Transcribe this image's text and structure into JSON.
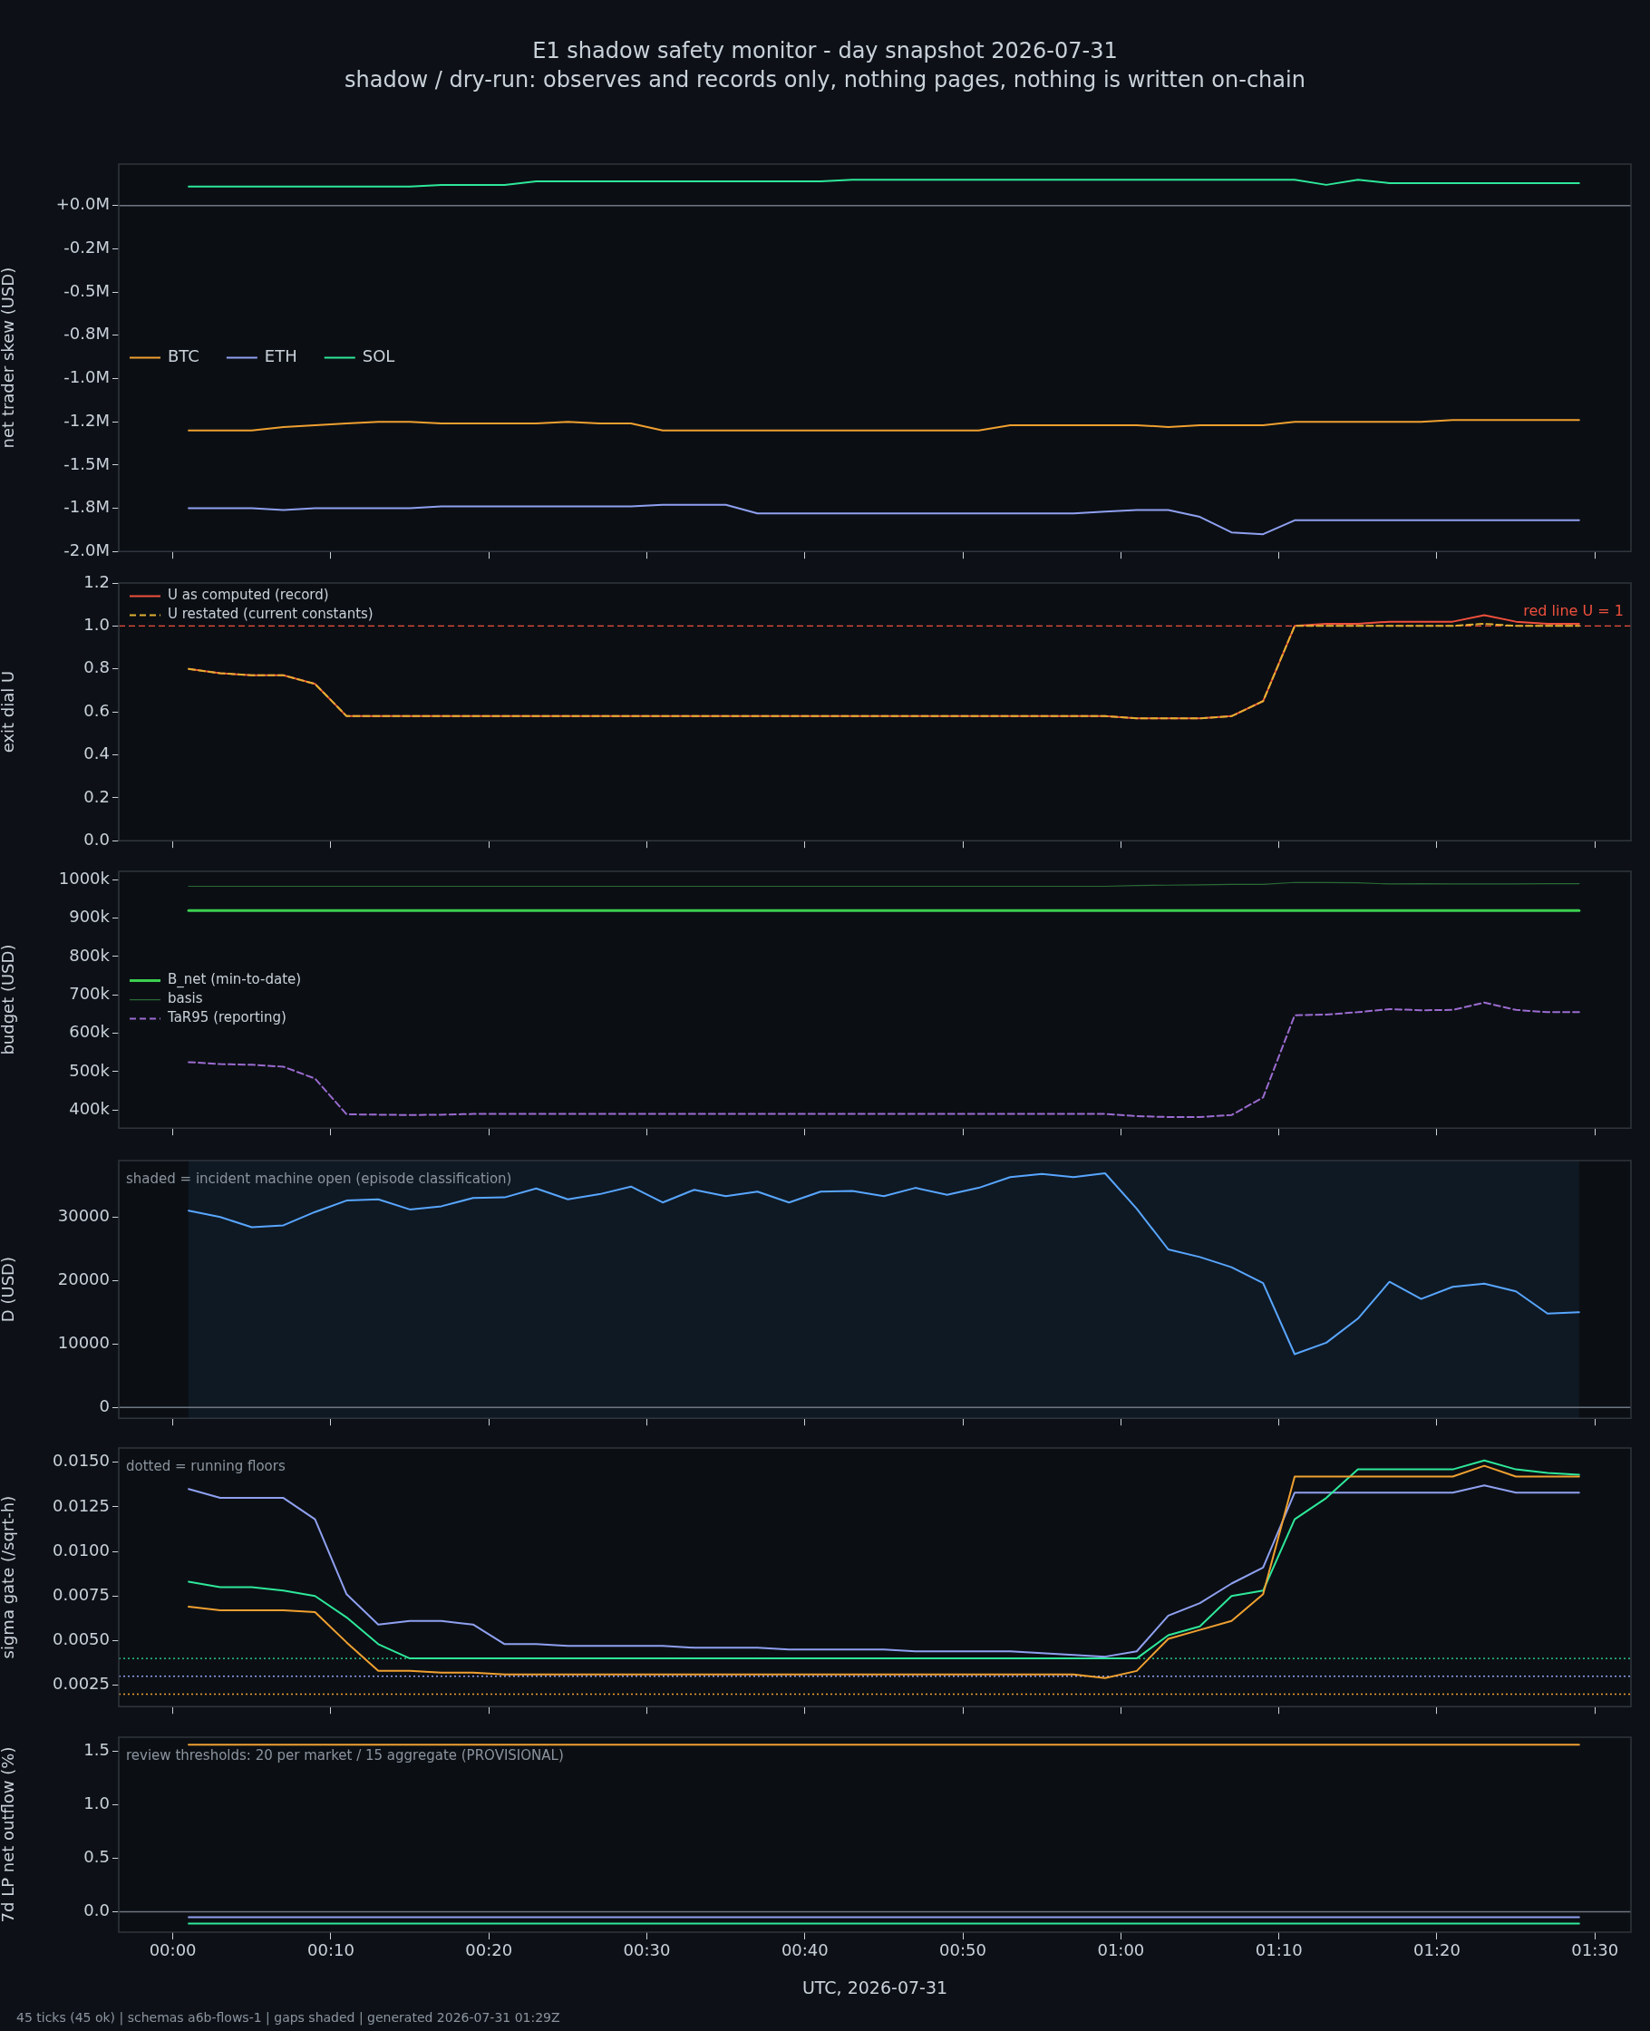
{
  "chart_data": [
    {
      "type": "line",
      "title": "E1 shadow safety monitor - day snapshot 2026-07-31",
      "subtitle": "shadow / dry-run: observes and records only, nothing pages, nothing is written on-chain",
      "ylabel": "net trader skew (USD)",
      "tick_labels": "y",
      "legend": "left",
      "x": [
        0.0167,
        0.05,
        0.0833,
        0.1167,
        0.15,
        0.1833,
        0.2167,
        0.25,
        0.2833,
        0.3167,
        0.35,
        0.3833,
        0.4167,
        0.45,
        0.4833,
        0.5167,
        0.55,
        0.5833,
        0.6167,
        0.65,
        0.6833,
        0.7167,
        0.75,
        0.7833,
        0.8167,
        0.85,
        0.8833,
        0.9167,
        0.95,
        0.9833,
        1.0167,
        1.05,
        1.0833,
        1.1167,
        1.15,
        1.1833,
        1.2167,
        1.25,
        1.2833,
        1.3167,
        1.35,
        1.3833,
        1.4167,
        1.45,
        1.4833
      ],
      "xlim": [
        -0.057,
        1.538
      ],
      "xticks": [
        {
          "value": 0,
          "label": null
        },
        {
          "value": 0.1667,
          "label": null
        },
        {
          "value": 0.3333,
          "label": null
        },
        {
          "value": 0.5,
          "label": null
        },
        {
          "value": 0.6667,
          "label": null
        },
        {
          "value": 0.8333,
          "label": null
        },
        {
          "value": 1,
          "label": null
        },
        {
          "value": 1.1667,
          "label": null
        },
        {
          "value": 1.3333,
          "label": null
        },
        {
          "value": 1.5,
          "label": null
        }
      ],
      "ylim": [
        -2.0,
        0.24
      ],
      "yticks": [
        {
          "value": 0,
          "label": "+0.0M"
        },
        {
          "value": -0.25,
          "label": "-0.2M"
        },
        {
          "value": -0.5,
          "label": "-0.5M"
        },
        {
          "value": -0.75,
          "label": "-0.8M"
        },
        {
          "value": -1,
          "label": "-1.0M"
        },
        {
          "value": -1.25,
          "label": "-1.2M"
        },
        {
          "value": -1.5,
          "label": "-1.5M"
        },
        {
          "value": -1.75,
          "label": "-1.8M"
        },
        {
          "value": -2,
          "label": "-2.0M"
        }
      ],
      "ref_lines": [
        {
          "axis": "y",
          "value": 0,
          "color": "#6e7681"
        }
      ],
      "series": [
        {
          "name": "BTC",
          "color": "#f0a030",
          "values": [
            -1.3,
            -1.3,
            -1.3,
            -1.28,
            -1.27,
            -1.26,
            -1.25,
            -1.25,
            -1.26,
            -1.26,
            -1.26,
            -1.26,
            -1.25,
            -1.26,
            -1.26,
            -1.3,
            -1.3,
            -1.3,
            -1.3,
            -1.3,
            -1.3,
            -1.3,
            -1.3,
            -1.3,
            -1.3,
            -1.3,
            -1.27,
            -1.27,
            -1.27,
            -1.27,
            -1.27,
            -1.28,
            -1.27,
            -1.27,
            -1.27,
            -1.25,
            -1.25,
            -1.25,
            -1.25,
            -1.25,
            -1.24,
            -1.24,
            -1.24,
            -1.24,
            -1.24
          ]
        },
        {
          "name": "ETH",
          "color": "#8fa0f0",
          "values": [
            -1.75,
            -1.75,
            -1.75,
            -1.76,
            -1.75,
            -1.75,
            -1.75,
            -1.75,
            -1.74,
            -1.74,
            -1.74,
            -1.74,
            -1.74,
            -1.74,
            -1.74,
            -1.73,
            -1.73,
            -1.73,
            -1.78,
            -1.78,
            -1.78,
            -1.78,
            -1.78,
            -1.78,
            -1.78,
            -1.78,
            -1.78,
            -1.78,
            -1.78,
            -1.77,
            -1.76,
            -1.76,
            -1.8,
            -1.89,
            -1.9,
            -1.82,
            -1.82,
            -1.82,
            -1.82,
            -1.82,
            -1.82,
            -1.82,
            -1.82,
            -1.82,
            -1.82
          ]
        },
        {
          "name": "SOL",
          "color": "#2ee89a",
          "values": [
            0.11,
            0.11,
            0.11,
            0.11,
            0.11,
            0.11,
            0.11,
            0.11,
            0.12,
            0.12,
            0.12,
            0.14,
            0.14,
            0.14,
            0.14,
            0.14,
            0.14,
            0.14,
            0.14,
            0.14,
            0.14,
            0.15,
            0.15,
            0.15,
            0.15,
            0.15,
            0.15,
            0.15,
            0.15,
            0.15,
            0.15,
            0.15,
            0.15,
            0.15,
            0.15,
            0.15,
            0.12,
            0.15,
            0.13,
            0.13,
            0.13,
            0.13,
            0.13,
            0.13,
            0.13
          ]
        }
      ]
    },
    {
      "type": "line",
      "ylabel": "exit dial U",
      "tick_labels": "y",
      "legend": "top left",
      "x": [
        0.0167,
        0.05,
        0.0833,
        0.1167,
        0.15,
        0.1833,
        0.2167,
        0.25,
        0.2833,
        0.3167,
        0.35,
        0.3833,
        0.4167,
        0.45,
        0.4833,
        0.5167,
        0.55,
        0.5833,
        0.6167,
        0.65,
        0.6833,
        0.7167,
        0.75,
        0.7833,
        0.8167,
        0.85,
        0.8833,
        0.9167,
        0.95,
        0.9833,
        1.0167,
        1.05,
        1.0833,
        1.1167,
        1.15,
        1.1833,
        1.2167,
        1.25,
        1.2833,
        1.3167,
        1.35,
        1.3833,
        1.4167,
        1.45,
        1.4833
      ],
      "xlim": [
        -0.057,
        1.538
      ],
      "xticks": [
        {
          "value": 0,
          "label": null
        },
        {
          "value": 0.1667,
          "label": null
        },
        {
          "value": 0.3333,
          "label": null
        },
        {
          "value": 0.5,
          "label": null
        },
        {
          "value": 0.6667,
          "label": null
        },
        {
          "value": 0.8333,
          "label": null
        },
        {
          "value": 1,
          "label": null
        },
        {
          "value": 1.1667,
          "label": null
        },
        {
          "value": 1.3333,
          "label": null
        },
        {
          "value": 1.5,
          "label": null
        }
      ],
      "ylim": [
        0,
        1.2
      ],
      "yticks": [
        {
          "value": 0,
          "label": "0.0"
        },
        0.2,
        0.4,
        0.6,
        0.8,
        {
          "value": 1,
          "label": "1.0"
        },
        1.2
      ],
      "ref_lines": [
        {
          "axis": "y",
          "value": 1,
          "label": "red line U = 1",
          "color": "#f0503c",
          "line_style": "dashed"
        }
      ],
      "series": [
        {
          "name": "U as computed (record)",
          "color": "#f0503c",
          "values": [
            0.8,
            0.78,
            0.77,
            0.77,
            0.73,
            0.58,
            0.58,
            0.58,
            0.58,
            0.58,
            0.58,
            0.58,
            0.58,
            0.58,
            0.58,
            0.58,
            0.58,
            0.58,
            0.58,
            0.58,
            0.58,
            0.58,
            0.58,
            0.58,
            0.58,
            0.58,
            0.58,
            0.58,
            0.58,
            0.58,
            0.57,
            0.57,
            0.57,
            0.58,
            0.65,
            1.0,
            1.01,
            1.01,
            1.02,
            1.02,
            1.02,
            1.05,
            1.02,
            1.01,
            1.01
          ]
        },
        {
          "name": "U restated (current constants)",
          "color": "#e0b030",
          "line_style": "dashed",
          "values": [
            0.8,
            0.78,
            0.77,
            0.77,
            0.73,
            0.58,
            0.58,
            0.58,
            0.58,
            0.58,
            0.58,
            0.58,
            0.58,
            0.58,
            0.58,
            0.58,
            0.58,
            0.58,
            0.58,
            0.58,
            0.58,
            0.58,
            0.58,
            0.58,
            0.58,
            0.58,
            0.58,
            0.58,
            0.58,
            0.58,
            0.57,
            0.57,
            0.57,
            0.58,
            0.65,
            1.0,
            1.0,
            1.0,
            1.0,
            1.0,
            1.0,
            1.01,
            1.0,
            1.0,
            1.0
          ]
        }
      ]
    },
    {
      "type": "line",
      "ylabel": "budget (USD)",
      "tick_labels": "y",
      "legend": "left",
      "x": [
        0.0167,
        0.05,
        0.0833,
        0.1167,
        0.15,
        0.1833,
        0.2167,
        0.25,
        0.2833,
        0.3167,
        0.35,
        0.3833,
        0.4167,
        0.45,
        0.4833,
        0.5167,
        0.55,
        0.5833,
        0.6167,
        0.65,
        0.6833,
        0.7167,
        0.75,
        0.7833,
        0.8167,
        0.85,
        0.8833,
        0.9167,
        0.95,
        0.9833,
        1.0167,
        1.05,
        1.0833,
        1.1167,
        1.15,
        1.1833,
        1.2167,
        1.25,
        1.2833,
        1.3167,
        1.35,
        1.3833,
        1.4167,
        1.45,
        1.4833
      ],
      "xlim": [
        -0.057,
        1.538
      ],
      "xticks": [
        {
          "value": 0,
          "label": null
        },
        {
          "value": 0.1667,
          "label": null
        },
        {
          "value": 0.3333,
          "label": null
        },
        {
          "value": 0.5,
          "label": null
        },
        {
          "value": 0.6667,
          "label": null
        },
        {
          "value": 0.8333,
          "label": null
        },
        {
          "value": 1,
          "label": null
        },
        {
          "value": 1.1667,
          "label": null
        },
        {
          "value": 1.3333,
          "label": null
        },
        {
          "value": 1.5,
          "label": null
        }
      ],
      "ylim": [
        353000,
        1022000
      ],
      "yticks": [
        {
          "value": 400000,
          "label": "400k"
        },
        {
          "value": 500000,
          "label": "500k"
        },
        {
          "value": 600000,
          "label": "600k"
        },
        {
          "value": 700000,
          "label": "700k"
        },
        {
          "value": 800000,
          "label": "800k"
        },
        {
          "value": 900000,
          "label": "900k"
        },
        {
          "value": 1000000,
          "label": "1000k"
        }
      ],
      "series": [
        {
          "name": "B_net (min-to-date)",
          "color": "#3ccf50",
          "values": [
            920000,
            920000,
            920000,
            920000,
            920000,
            920000,
            920000,
            920000,
            920000,
            920000,
            920000,
            920000,
            920000,
            920000,
            920000,
            920000,
            920000,
            920000,
            920000,
            920000,
            920000,
            920000,
            920000,
            920000,
            920000,
            920000,
            920000,
            920000,
            920000,
            920000,
            920000,
            920000,
            920000,
            920000,
            920000,
            920000,
            920000,
            920000,
            920000,
            920000,
            920000,
            920000,
            920000,
            920000,
            920000
          ]
        },
        {
          "name": "basis",
          "color": "#2a6a35",
          "values": [
            983000,
            983000,
            983000,
            983000,
            983000,
            983000,
            983000,
            983000,
            983000,
            983000,
            983000,
            983000,
            983000,
            983000,
            983000,
            983000,
            983000,
            983000,
            983000,
            983000,
            983000,
            983000,
            983000,
            983000,
            983000,
            983000,
            983000,
            983000,
            983000,
            983000,
            985000,
            986000,
            987000,
            988000,
            988000,
            993000,
            993000,
            992000,
            989000,
            990000,
            989000,
            989000,
            989000,
            990000,
            990000
          ]
        },
        {
          "name": "TaR95 (reporting)",
          "color": "#9b6bd0",
          "line_style": "dashed",
          "values": [
            525000,
            520000,
            518000,
            513000,
            482000,
            389000,
            388000,
            387000,
            388000,
            390000,
            390000,
            390000,
            390000,
            390000,
            390000,
            390000,
            390000,
            390000,
            390000,
            390000,
            390000,
            390000,
            390000,
            390000,
            390000,
            390000,
            390000,
            390000,
            390000,
            390000,
            384000,
            382000,
            382000,
            387000,
            433000,
            647000,
            649000,
            655000,
            663000,
            660000,
            661000,
            680000,
            661000,
            655000,
            655000
          ]
        }
      ]
    },
    {
      "type": "line",
      "ylabel": "D (USD)",
      "tick_labels": "y",
      "x": [
        0.0167,
        0.05,
        0.0833,
        0.1167,
        0.15,
        0.1833,
        0.2167,
        0.25,
        0.2833,
        0.3167,
        0.35,
        0.3833,
        0.4167,
        0.45,
        0.4833,
        0.5167,
        0.55,
        0.5833,
        0.6167,
        0.65,
        0.6833,
        0.7167,
        0.75,
        0.7833,
        0.8167,
        0.85,
        0.8833,
        0.9167,
        0.95,
        0.9833,
        1.0167,
        1.05,
        1.0833,
        1.1167,
        1.15,
        1.1833,
        1.2167,
        1.25,
        1.2833,
        1.3167,
        1.35,
        1.3833,
        1.4167,
        1.45,
        1.4833
      ],
      "xlim": [
        -0.057,
        1.538
      ],
      "xticks": [
        {
          "value": 0,
          "label": null
        },
        {
          "value": 0.1667,
          "label": null
        },
        {
          "value": 0.3333,
          "label": null
        },
        {
          "value": 0.5,
          "label": null
        },
        {
          "value": 0.6667,
          "label": null
        },
        {
          "value": 0.8333,
          "label": null
        },
        {
          "value": 1,
          "label": null
        },
        {
          "value": 1.1667,
          "label": null
        },
        {
          "value": 1.3333,
          "label": null
        },
        {
          "value": 1.5,
          "label": null
        }
      ],
      "ylim": [
        -1700,
        38900
      ],
      "yticks": [
        0,
        10000,
        20000,
        30000
      ],
      "ref_lines": [
        {
          "axis": "y",
          "value": 0,
          "color": "#6e7681"
        }
      ],
      "bands": [
        {
          "axis": "x",
          "from": 0.0167,
          "to": 1.4833,
          "label": "shaded = incident machine open (episode classification)",
          "color": "#0f1924"
        }
      ],
      "series": [
        {
          "color": "#58a6ff",
          "values": [
            31000,
            30000,
            28400,
            28700,
            30800,
            32600,
            32800,
            31200,
            31700,
            33000,
            33100,
            34500,
            32800,
            33600,
            34800,
            32300,
            34300,
            33300,
            34000,
            32300,
            34000,
            34100,
            33300,
            34600,
            33500,
            34600,
            36300,
            36800,
            36300,
            36900,
            31300,
            24900,
            23700,
            22100,
            19600,
            8400,
            10200,
            14000,
            19800,
            17100,
            19000,
            19500,
            18300,
            14800,
            15000
          ]
        }
      ]
    },
    {
      "type": "line",
      "ylabel": "sigma gate (/sqrt-h)",
      "tick_labels": "y",
      "annotations": [
        "dotted = running floors"
      ],
      "x": [
        0.0167,
        0.05,
        0.0833,
        0.1167,
        0.15,
        0.1833,
        0.2167,
        0.25,
        0.2833,
        0.3167,
        0.35,
        0.3833,
        0.4167,
        0.45,
        0.4833,
        0.5167,
        0.55,
        0.5833,
        0.6167,
        0.65,
        0.6833,
        0.7167,
        0.75,
        0.7833,
        0.8167,
        0.85,
        0.8833,
        0.9167,
        0.95,
        0.9833,
        1.0167,
        1.05,
        1.0833,
        1.1167,
        1.15,
        1.1833,
        1.2167,
        1.25,
        1.2833,
        1.3167,
        1.35,
        1.3833,
        1.4167,
        1.45,
        1.4833
      ],
      "xlim": [
        -0.057,
        1.538
      ],
      "xticks": [
        {
          "value": 0,
          "label": null
        },
        {
          "value": 0.1667,
          "label": null
        },
        {
          "value": 0.3333,
          "label": null
        },
        {
          "value": 0.5,
          "label": null
        },
        {
          "value": 0.6667,
          "label": null
        },
        {
          "value": 0.8333,
          "label": null
        },
        {
          "value": 1,
          "label": null
        },
        {
          "value": 1.1667,
          "label": null
        },
        {
          "value": 1.3333,
          "label": null
        },
        {
          "value": 1.5,
          "label": null
        }
      ],
      "ylim": [
        0.0013,
        0.0158
      ],
      "yticks": [
        0.0025,
        {
          "value": 0.005,
          "label": "0.0050"
        },
        {
          "value": 0.0075,
          "label": "0.0075"
        },
        {
          "value": 0.01,
          "label": "0.0100"
        },
        {
          "value": 0.0125,
          "label": "0.0125"
        },
        {
          "value": 0.015,
          "label": "0.0150"
        }
      ],
      "ref_lines": [
        {
          "axis": "y",
          "value": 0.004,
          "color": "#2ee89a",
          "line_style": "dotted"
        },
        {
          "axis": "y",
          "value": 0.003,
          "color": "#8fa0f0",
          "line_style": "dotted"
        },
        {
          "axis": "y",
          "value": 0.002,
          "color": "#f0a030",
          "line_style": "dotted"
        }
      ],
      "series": [
        {
          "color": "#8fa0f0",
          "values": [
            0.0135,
            0.013,
            0.013,
            0.013,
            0.0118,
            0.0076,
            0.0059,
            0.0061,
            0.0061,
            0.0059,
            0.0048,
            0.0048,
            0.0047,
            0.0047,
            0.0047,
            0.0047,
            0.0046,
            0.0046,
            0.0046,
            0.0045,
            0.0045,
            0.0045,
            0.0045,
            0.0044,
            0.0044,
            0.0044,
            0.0044,
            0.0043,
            0.0042,
            0.0041,
            0.0044,
            0.0064,
            0.0071,
            0.0082,
            0.0091,
            0.0133,
            0.0133,
            0.0133,
            0.0133,
            0.0133,
            0.0133,
            0.0137,
            0.0133,
            0.0133,
            0.0133
          ]
        },
        {
          "color": "#2ee89a",
          "values": [
            0.0083,
            0.008,
            0.008,
            0.0078,
            0.0075,
            0.0063,
            0.0048,
            0.004,
            0.004,
            0.004,
            0.004,
            0.004,
            0.004,
            0.004,
            0.004,
            0.004,
            0.004,
            0.004,
            0.004,
            0.004,
            0.004,
            0.004,
            0.004,
            0.004,
            0.004,
            0.004,
            0.004,
            0.004,
            0.004,
            0.004,
            0.004,
            0.0053,
            0.0058,
            0.0075,
            0.0078,
            0.0118,
            0.013,
            0.0146,
            0.0146,
            0.0146,
            0.0146,
            0.0151,
            0.0146,
            0.0144,
            0.0143
          ]
        },
        {
          "color": "#f0a030",
          "values": [
            0.0069,
            0.0067,
            0.0067,
            0.0067,
            0.0066,
            0.0049,
            0.0033,
            0.0033,
            0.0032,
            0.0032,
            0.0031,
            0.0031,
            0.0031,
            0.0031,
            0.0031,
            0.0031,
            0.0031,
            0.0031,
            0.0031,
            0.0031,
            0.0031,
            0.0031,
            0.0031,
            0.0031,
            0.0031,
            0.0031,
            0.0031,
            0.0031,
            0.0031,
            0.0029,
            0.0033,
            0.0051,
            0.0056,
            0.0061,
            0.0076,
            0.0142,
            0.0142,
            0.0142,
            0.0142,
            0.0142,
            0.0142,
            0.0148,
            0.0142,
            0.0142,
            0.0142
          ]
        }
      ]
    },
    {
      "type": "line",
      "ylabel": "7d LP net outflow (%)",
      "xlabel": "UTC, 2026-07-31",
      "annotations": [
        "review thresholds: 20 per market / 15 aggregate (PROVISIONAL)",
        "45 ticks (45 ok) | schemas a6b-flows-1 | gaps shaded | generated 2026-07-31 01:29Z"
      ],
      "x": [
        0.0167,
        0.05,
        0.0833,
        0.1167,
        0.15,
        0.1833,
        0.2167,
        0.25,
        0.2833,
        0.3167,
        0.35,
        0.3833,
        0.4167,
        0.45,
        0.4833,
        0.5167,
        0.55,
        0.5833,
        0.6167,
        0.65,
        0.6833,
        0.7167,
        0.75,
        0.7833,
        0.8167,
        0.85,
        0.8833,
        0.9167,
        0.95,
        0.9833,
        1.0167,
        1.05,
        1.0833,
        1.1167,
        1.15,
        1.1833,
        1.2167,
        1.25,
        1.2833,
        1.3167,
        1.35,
        1.3833,
        1.4167,
        1.45,
        1.4833
      ],
      "xlim": [
        -0.057,
        1.538
      ],
      "xticks": [
        {
          "value": 0,
          "label": "00:00"
        },
        {
          "value": 0.1667,
          "label": "00:10"
        },
        {
          "value": 0.3333,
          "label": "00:20"
        },
        {
          "value": 0.5,
          "label": "00:30"
        },
        {
          "value": 0.6667,
          "label": "00:40"
        },
        {
          "value": 0.8333,
          "label": "00:50"
        },
        {
          "value": 1,
          "label": "01:00"
        },
        {
          "value": 1.1667,
          "label": "01:10"
        },
        {
          "value": 1.3333,
          "label": "01:20"
        },
        {
          "value": 1.5,
          "label": "01:30"
        }
      ],
      "ylim": [
        -0.19,
        1.63
      ],
      "yticks": [
        {
          "value": 0,
          "label": "0.0"
        },
        0.5,
        {
          "value": 1,
          "label": "1.0"
        },
        1.5
      ],
      "ref_lines": [
        {
          "axis": "y",
          "value": 0,
          "color": "#6e7681"
        }
      ],
      "series": [
        {
          "color": "#f0a030",
          "values": [
            1.56,
            1.56,
            1.56,
            1.56,
            1.56,
            1.56,
            1.56,
            1.56,
            1.56,
            1.56,
            1.56,
            1.56,
            1.56,
            1.56,
            1.56,
            1.56,
            1.56,
            1.56,
            1.56,
            1.56,
            1.56,
            1.56,
            1.56,
            1.56,
            1.56,
            1.56,
            1.56,
            1.56,
            1.56,
            1.56,
            1.56,
            1.56,
            1.56,
            1.56,
            1.56,
            1.56,
            1.56,
            1.56,
            1.56,
            1.56,
            1.56,
            1.56,
            1.56,
            1.56,
            1.56
          ]
        },
        {
          "color": "#8fa0f0",
          "values": [
            -0.05,
            -0.05,
            -0.05,
            -0.05,
            -0.05,
            -0.05,
            -0.05,
            -0.05,
            -0.05,
            -0.05,
            -0.05,
            -0.05,
            -0.05,
            -0.05,
            -0.05,
            -0.05,
            -0.05,
            -0.05,
            -0.05,
            -0.05,
            -0.05,
            -0.05,
            -0.05,
            -0.05,
            -0.05,
            -0.05,
            -0.05,
            -0.05,
            -0.05,
            -0.05,
            -0.05,
            -0.05,
            -0.05,
            -0.05,
            -0.05,
            -0.05,
            -0.05,
            -0.05,
            -0.05,
            -0.05,
            -0.05,
            -0.05,
            -0.05,
            -0.05,
            -0.05
          ]
        },
        {
          "color": "#2ee89a",
          "values": [
            -0.11,
            -0.11,
            -0.11,
            -0.11,
            -0.11,
            -0.11,
            -0.11,
            -0.11,
            -0.11,
            -0.11,
            -0.11,
            -0.11,
            -0.11,
            -0.11,
            -0.11,
            -0.11,
            -0.11,
            -0.11,
            -0.11,
            -0.11,
            -0.11,
            -0.11,
            -0.11,
            -0.11,
            -0.11,
            -0.11,
            -0.11,
            -0.11,
            -0.11,
            -0.11,
            -0.11,
            -0.11,
            -0.11,
            -0.11,
            -0.11,
            -0.11,
            -0.11,
            -0.11,
            -0.11,
            -0.11,
            -0.11,
            -0.11,
            -0.11,
            -0.11,
            -0.11
          ]
        }
      ]
    }
  ]
}
